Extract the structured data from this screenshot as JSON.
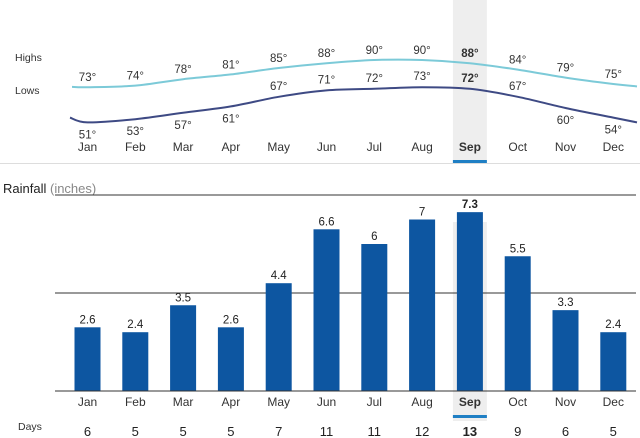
{
  "colors": {
    "highs_line": "#7ccad8",
    "lows_line": "#3e4a84",
    "bar": "#0d56a1",
    "highlight_bg": "#eeeeee",
    "highlight_bar": "#1f7fc4",
    "gridline": "#333333"
  },
  "selected_month": "Sep",
  "temperature": {
    "highs_label": "Highs",
    "lows_label": "Lows",
    "unit_symbol": "°"
  },
  "rainfall": {
    "title": "Rainfall",
    "unit": "(inches)",
    "days_label": "Days"
  },
  "chart_data": [
    {
      "type": "line",
      "categories": [
        "Jan",
        "Feb",
        "Mar",
        "Apr",
        "May",
        "Jun",
        "Jul",
        "Aug",
        "Sep",
        "Oct",
        "Nov",
        "Dec"
      ],
      "series": [
        {
          "name": "Highs",
          "values": [
            73,
            74,
            78,
            81,
            85,
            88,
            90,
            90,
            88,
            84,
            79,
            75
          ]
        },
        {
          "name": "Lows",
          "values": [
            51,
            53,
            57,
            61,
            67,
            71,
            72,
            73,
            72,
            67,
            60,
            54
          ]
        }
      ]
    },
    {
      "type": "bar",
      "title": "Rainfall",
      "ylabel": "(inches)",
      "categories": [
        "Jan",
        "Feb",
        "Mar",
        "Apr",
        "May",
        "Jun",
        "Jul",
        "Aug",
        "Sep",
        "Oct",
        "Nov",
        "Dec"
      ],
      "values": [
        2.6,
        2.4,
        3.5,
        2.6,
        4.4,
        6.6,
        6,
        7,
        7.3,
        5.5,
        3.3,
        2.4
      ],
      "value_labels": [
        "2.6",
        "2.4",
        "3.5",
        "2.6",
        "4.4",
        "6.6",
        "6",
        "7",
        "7.3",
        "5.5",
        "3.3",
        "2.4"
      ],
      "days": [
        6,
        5,
        5,
        5,
        7,
        11,
        11,
        12,
        13,
        9,
        6,
        5
      ],
      "ylim": [
        0,
        12
      ],
      "grid": true
    }
  ]
}
